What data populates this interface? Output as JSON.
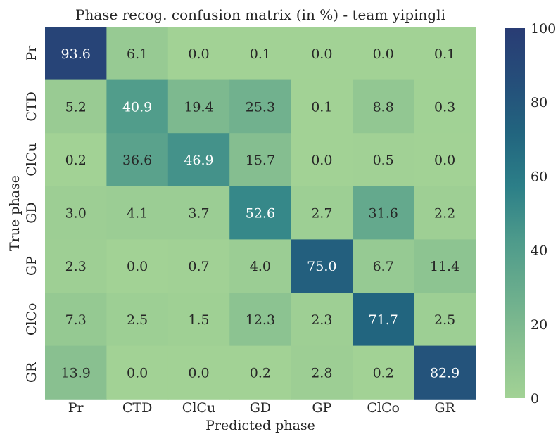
{
  "chart_data": {
    "type": "heatmap",
    "title": "Phase recog. confusion matrix (in %) - team yipingli",
    "xlabel": "Predicted phase",
    "ylabel": "True phase",
    "x_categories": [
      "Pr",
      "CTD",
      "ClCu",
      "GD",
      "GP",
      "ClCo",
      "GR"
    ],
    "y_categories": [
      "Pr",
      "CTD",
      "ClCu",
      "GD",
      "GP",
      "ClCo",
      "GR"
    ],
    "values": [
      [
        93.6,
        6.1,
        0.0,
        0.1,
        0.0,
        0.0,
        0.1
      ],
      [
        5.2,
        40.9,
        19.4,
        25.3,
        0.1,
        8.8,
        0.3
      ],
      [
        0.2,
        36.6,
        46.9,
        15.7,
        0.0,
        0.5,
        0.0
      ],
      [
        3.0,
        4.1,
        3.7,
        52.6,
        2.7,
        31.6,
        2.2
      ],
      [
        2.3,
        0.0,
        0.7,
        4.0,
        75.0,
        6.7,
        11.4
      ],
      [
        7.3,
        2.5,
        1.5,
        12.3,
        2.3,
        71.7,
        2.5
      ],
      [
        13.9,
        0.0,
        0.0,
        0.2,
        2.8,
        0.2,
        82.9
      ]
    ],
    "value_range": [
      0,
      100
    ],
    "colorbar": {
      "ticks": [
        0,
        20,
        40,
        60,
        80,
        100
      ],
      "tick_labels": [
        "0",
        "20",
        "40",
        "60",
        "80",
        "100"
      ]
    },
    "colormap": [
      "#a2d295",
      "#88c090",
      "#6aad8d",
      "#4d9a8b",
      "#2c7f88",
      "#22657f",
      "#254e7a",
      "#293c74"
    ]
  }
}
